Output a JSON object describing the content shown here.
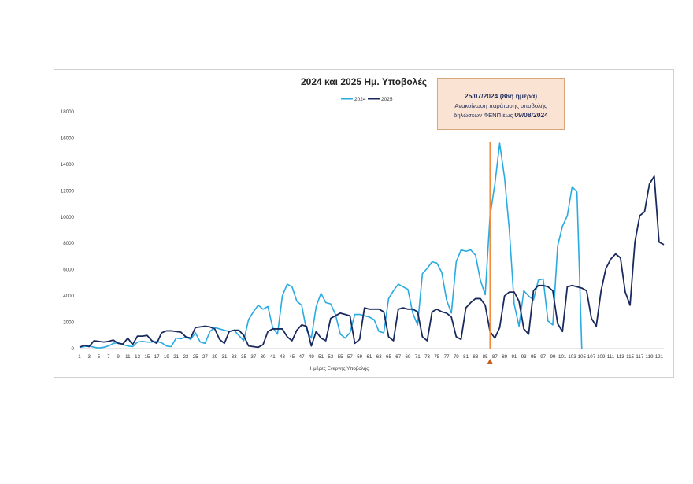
{
  "chart_data": {
    "type": "line",
    "title": "2024 και 2025 Ημ. Υποβολές",
    "xlabel": "Ημέρες Ενεργης Υποβολής",
    "ylabel": "",
    "xlim": [
      1,
      122
    ],
    "ylim": [
      0,
      18000
    ],
    "yticks": [
      0,
      2000,
      4000,
      6000,
      8000,
      10000,
      12000,
      14000,
      16000,
      18000
    ],
    "xtick_labels": [
      "1",
      "3",
      "5",
      "7",
      "9",
      "11",
      "13",
      "15",
      "17",
      "19",
      "21",
      "23",
      "25",
      "27",
      "29",
      "31",
      "33",
      "35",
      "37",
      "39",
      "41",
      "43",
      "45",
      "47",
      "49",
      "51",
      "53",
      "55",
      "57",
      "59",
      "61",
      "63",
      "65",
      "67",
      "69",
      "71",
      "73",
      "75",
      "77",
      "79",
      "81",
      "83",
      "85",
      "87",
      "89",
      "91",
      "93",
      "95",
      "97",
      "99",
      "101",
      "103",
      "105",
      "107",
      "109",
      "111",
      "113",
      "115",
      "117",
      "119",
      "121"
    ],
    "grid": false,
    "legend": "top-center",
    "series": [
      {
        "name": "2024",
        "color": "#29abe2",
        "x_start": 1,
        "values": [
          100,
          150,
          200,
          100,
          50,
          100,
          200,
          400,
          450,
          300,
          200,
          150,
          500,
          550,
          500,
          500,
          550,
          450,
          200,
          150,
          800,
          750,
          900,
          700,
          1200,
          500,
          400,
          1300,
          1600,
          1500,
          1400,
          1300,
          1400,
          1000,
          600,
          2200,
          2800,
          3300,
          3000,
          3200,
          1600,
          1100,
          4000,
          4900,
          4700,
          3600,
          3300,
          1400,
          800,
          3200,
          4200,
          3500,
          3400,
          2600,
          1100,
          800,
          1200,
          2600,
          2600,
          2500,
          2400,
          2200,
          1300,
          1200,
          3800,
          4400,
          4900,
          4700,
          4500,
          2700,
          1800,
          5700,
          6100,
          6600,
          6500,
          5800,
          3700,
          2700,
          6600,
          7500,
          7400,
          7500,
          7100,
          5200,
          4100,
          10100,
          12500,
          15600,
          13000,
          9000,
          3400,
          1700,
          4400,
          4000,
          3700,
          5200,
          5300,
          2100,
          1800,
          7800,
          9300,
          10100,
          12300,
          11900,
          0
        ]
      },
      {
        "name": "2025",
        "color": "#1a2a5e",
        "x_start": 1,
        "values": [
          100,
          250,
          150,
          600,
          550,
          500,
          550,
          650,
          400,
          350,
          800,
          300,
          950,
          950,
          1000,
          600,
          400,
          1200,
          1350,
          1350,
          1300,
          1250,
          900,
          800,
          1600,
          1650,
          1700,
          1650,
          1500,
          700,
          400,
          1300,
          1400,
          1400,
          1000,
          200,
          150,
          100,
          300,
          1300,
          1500,
          1500,
          1500,
          900,
          600,
          1400,
          1800,
          1700,
          200,
          1300,
          800,
          600,
          2300,
          2500,
          2700,
          2600,
          2500,
          400,
          700,
          3100,
          3000,
          3000,
          3000,
          2800,
          900,
          600,
          3000,
          3100,
          3000,
          3000,
          2800,
          900,
          600,
          2800,
          3000,
          2800,
          2700,
          2400,
          900,
          700,
          3100,
          3500,
          3800,
          3800,
          3300,
          1300,
          800,
          1600,
          4000,
          4300,
          4300,
          3600,
          1500,
          1100,
          4400,
          4800,
          4800,
          4700,
          4400,
          1900,
          1300,
          4700,
          4800,
          4700,
          4600,
          4400,
          2300,
          1700,
          4400,
          6100,
          6800,
          7200,
          6900,
          4300,
          3300,
          8100,
          10100,
          10400,
          12500,
          13100,
          8100,
          7900
        ]
      }
    ],
    "annotation": {
      "x": 86,
      "line1": "25/07/2024 (86η ημέρα)",
      "line2": "Ανακοίνωση παράτασης υποβολής",
      "line3_prefix": "δηλώσεων ΦΕΝΠ έως ",
      "line3_bold": "09/08/2024",
      "line_color": "#f08a3c",
      "marker_color": "#c65d20"
    }
  }
}
